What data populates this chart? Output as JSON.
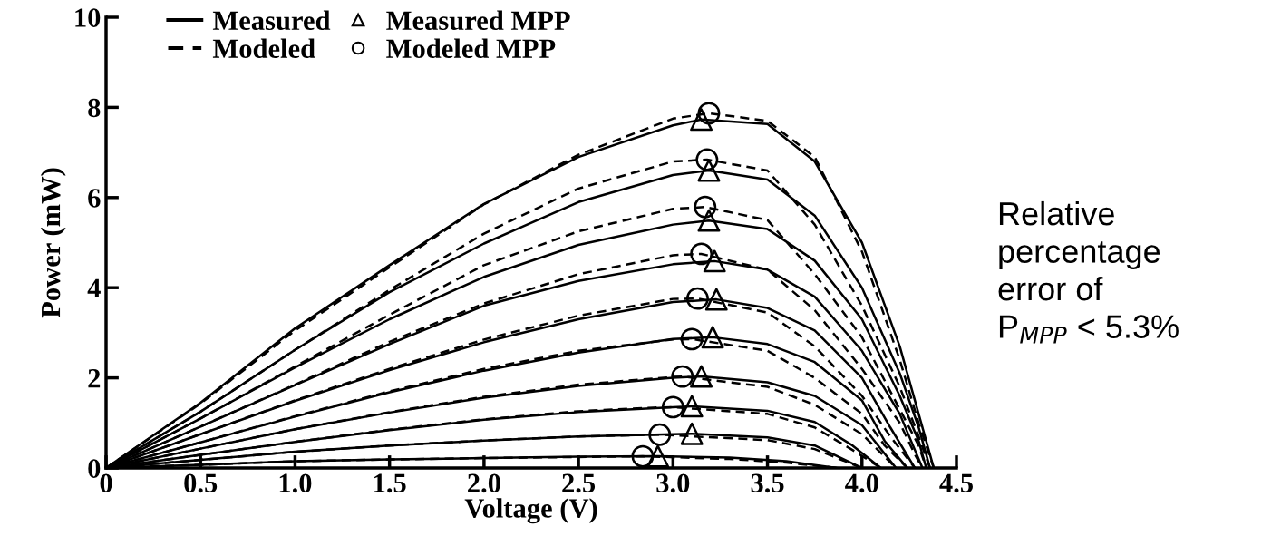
{
  "chart_data": {
    "type": "line",
    "xlabel": "Voltage (V)",
    "ylabel": "Power (mW)",
    "xlim": [
      0,
      4.5
    ],
    "ylim": [
      0,
      10
    ],
    "xticks": [
      0,
      0.5,
      {
        "value": 1,
        "label": "1.0"
      },
      1.5,
      {
        "value": 2,
        "label": "2.0"
      },
      2.5,
      {
        "value": 3,
        "label": "3.0"
      },
      3.5,
      {
        "value": 4,
        "label": "4.0"
      },
      4.5
    ],
    "yticks": [
      0,
      2,
      4,
      6,
      8,
      10
    ],
    "grid": false,
    "legend": "top left",
    "annotations": [
      "Relative\npercentage\nerror of\nP$_{MPP}$ < 5.3%"
    ],
    "series": [
      {
        "name": "Measured",
        "line_style": "solid",
        "color": "#000000",
        "x": [
          0,
          0.5,
          1,
          1.5,
          2,
          2.5,
          3,
          3.15,
          3.5,
          3.75,
          4,
          4.2,
          4.3,
          4.38
        ],
        "values": [
          0,
          1.45,
          3.1,
          4.5,
          5.86,
          6.9,
          7.6,
          7.73,
          7.63,
          6.8,
          5.0,
          2.7,
          1.2,
          0
        ]
      },
      {
        "line_style": "solid",
        "color": "#000000",
        "x": [
          0,
          0.5,
          1,
          1.5,
          2,
          2.5,
          3,
          3.19,
          3.5,
          3.75,
          4,
          4.2,
          4.3,
          4.36
        ],
        "values": [
          0,
          1.25,
          2.62,
          3.9,
          4.98,
          5.9,
          6.5,
          6.6,
          6.4,
          5.6,
          4.0,
          2.1,
          0.9,
          0
        ]
      },
      {
        "line_style": "solid",
        "color": "#000000",
        "x": [
          0,
          0.5,
          1,
          1.5,
          2,
          2.5,
          3,
          3.19,
          3.5,
          3.75,
          4,
          4.2,
          4.3,
          4.34
        ],
        "values": [
          0,
          1.1,
          2.23,
          3.3,
          4.24,
          4.95,
          5.4,
          5.49,
          5.3,
          4.6,
          3.3,
          1.6,
          0.6,
          0
        ]
      },
      {
        "line_style": "solid",
        "color": "#000000",
        "x": [
          0,
          0.5,
          1,
          1.5,
          2,
          2.5,
          3,
          3.22,
          3.5,
          3.75,
          4,
          4.2,
          4.28,
          4.32
        ],
        "values": [
          0,
          0.92,
          1.84,
          2.75,
          3.6,
          4.15,
          4.52,
          4.59,
          4.4,
          3.8,
          2.6,
          1.2,
          0.4,
          0
        ]
      },
      {
        "line_style": "solid",
        "color": "#000000",
        "x": [
          0,
          0.5,
          1,
          1.5,
          2,
          2.5,
          3,
          3.23,
          3.5,
          3.75,
          4,
          4.15,
          4.28
        ],
        "values": [
          0,
          0.75,
          1.49,
          2.17,
          2.79,
          3.3,
          3.68,
          3.74,
          3.55,
          3.05,
          2.0,
          0.9,
          0
        ]
      },
      {
        "line_style": "solid",
        "color": "#000000",
        "x": [
          0,
          0.5,
          1,
          1.5,
          2,
          2.5,
          3,
          3.21,
          3.5,
          3.75,
          4,
          4.12,
          4.24
        ],
        "values": [
          0,
          0.57,
          1.14,
          1.68,
          2.16,
          2.56,
          2.86,
          2.9,
          2.75,
          2.35,
          1.5,
          0.6,
          0
        ]
      },
      {
        "line_style": "solid",
        "color": "#000000",
        "x": [
          0,
          0.5,
          1,
          1.5,
          2,
          2.5,
          3,
          3.15,
          3.5,
          3.75,
          4,
          4.18
        ],
        "values": [
          0,
          0.43,
          0.86,
          1.23,
          1.56,
          1.82,
          2.0,
          2.03,
          1.9,
          1.6,
          0.95,
          0
        ]
      },
      {
        "line_style": "solid",
        "color": "#000000",
        "x": [
          0,
          0.5,
          1,
          1.5,
          2,
          2.5,
          3,
          3.1,
          3.5,
          3.75,
          3.95,
          4.1
        ],
        "values": [
          0,
          0.29,
          0.58,
          0.84,
          1.07,
          1.24,
          1.35,
          1.37,
          1.27,
          1.02,
          0.5,
          0
        ]
      },
      {
        "line_style": "solid",
        "color": "#000000",
        "x": [
          0,
          0.5,
          1,
          1.5,
          2,
          2.5,
          3,
          3.1,
          3.5,
          3.75,
          4.0
        ],
        "values": [
          0,
          0.18,
          0.36,
          0.5,
          0.61,
          0.7,
          0.75,
          0.76,
          0.68,
          0.5,
          0
        ]
      },
      {
        "line_style": "solid",
        "color": "#000000",
        "x": [
          0,
          0.5,
          1,
          1.5,
          2,
          2.5,
          2.92,
          3.3,
          3.6,
          3.87
        ],
        "values": [
          0,
          0.07,
          0.15,
          0.19,
          0.22,
          0.25,
          0.26,
          0.23,
          0.15,
          0
        ]
      },
      {
        "name": "Modeled",
        "line_style": "dashed",
        "color": "#000000",
        "x": [
          0,
          0.5,
          1,
          1.5,
          2,
          2.5,
          3,
          3.19,
          3.5,
          3.75,
          4,
          4.2,
          4.3,
          4.38
        ],
        "values": [
          0,
          1.43,
          3.05,
          4.45,
          5.85,
          6.95,
          7.75,
          7.87,
          7.7,
          6.9,
          4.8,
          2.4,
          1.0,
          0
        ]
      },
      {
        "line_style": "dashed",
        "color": "#000000",
        "x": [
          0,
          0.5,
          1,
          1.5,
          2,
          2.5,
          3,
          3.18,
          3.5,
          3.75,
          4,
          4.2,
          4.3,
          4.36
        ],
        "values": [
          0,
          1.25,
          2.62,
          3.95,
          5.2,
          6.2,
          6.8,
          6.84,
          6.6,
          5.4,
          3.6,
          1.8,
          0.7,
          0
        ]
      },
      {
        "line_style": "dashed",
        "color": "#000000",
        "x": [
          0,
          0.5,
          1,
          1.5,
          2,
          2.5,
          3,
          3.17,
          3.5,
          3.75,
          4,
          4.2,
          4.3,
          4.34
        ],
        "values": [
          0,
          1.1,
          2.25,
          3.4,
          4.5,
          5.25,
          5.75,
          5.79,
          5.5,
          4.3,
          2.9,
          1.3,
          0.5,
          0
        ]
      },
      {
        "line_style": "dashed",
        "color": "#000000",
        "x": [
          0,
          0.5,
          1,
          1.5,
          2,
          2.5,
          3,
          3.15,
          3.5,
          3.75,
          4,
          4.2,
          4.28,
          4.32
        ],
        "values": [
          0,
          0.92,
          1.85,
          2.8,
          3.65,
          4.3,
          4.72,
          4.75,
          4.4,
          3.5,
          2.2,
          1.0,
          0.3,
          0
        ]
      },
      {
        "line_style": "dashed",
        "color": "#000000",
        "x": [
          0,
          0.5,
          1,
          1.5,
          2,
          2.5,
          3,
          3.13,
          3.5,
          3.75,
          4,
          4.15,
          4.28
        ],
        "values": [
          0,
          0.75,
          1.5,
          2.2,
          2.85,
          3.38,
          3.75,
          3.76,
          3.45,
          2.7,
          1.6,
          0.7,
          0
        ]
      },
      {
        "line_style": "dashed",
        "color": "#000000",
        "x": [
          0,
          0.5,
          1,
          1.5,
          2,
          2.5,
          3,
          3.1,
          3.5,
          3.75,
          4,
          4.12,
          4.24
        ],
        "values": [
          0,
          0.57,
          1.15,
          1.7,
          2.2,
          2.6,
          2.85,
          2.86,
          2.6,
          2.0,
          1.2,
          0.5,
          0
        ]
      },
      {
        "line_style": "dashed",
        "color": "#000000",
        "x": [
          0,
          0.5,
          1,
          1.5,
          2,
          2.5,
          3,
          3.05,
          3.5,
          3.75,
          4,
          4.18
        ],
        "values": [
          0,
          0.43,
          0.86,
          1.24,
          1.58,
          1.85,
          2.02,
          2.03,
          1.8,
          1.4,
          0.75,
          0
        ]
      },
      {
        "line_style": "dashed",
        "color": "#000000",
        "x": [
          0,
          0.5,
          1,
          1.5,
          2,
          2.5,
          2.9,
          3.0,
          3.5,
          3.75,
          3.95,
          4.1
        ],
        "values": [
          0,
          0.29,
          0.58,
          0.85,
          1.08,
          1.26,
          1.34,
          1.35,
          1.2,
          0.9,
          0.4,
          0
        ]
      },
      {
        "line_style": "dashed",
        "color": "#000000",
        "x": [
          0,
          0.5,
          1,
          1.5,
          2,
          2.5,
          2.93,
          3.5,
          3.75,
          4.0
        ],
        "values": [
          0,
          0.18,
          0.36,
          0.5,
          0.61,
          0.7,
          0.74,
          0.62,
          0.42,
          0
        ]
      },
      {
        "line_style": "dashed",
        "color": "#000000",
        "x": [
          0,
          0.5,
          1,
          1.5,
          2,
          2.84,
          3.3,
          3.6,
          3.87
        ],
        "values": [
          0,
          0.07,
          0.15,
          0.19,
          0.22,
          0.26,
          0.2,
          0.12,
          0
        ]
      },
      {
        "name": "Measured MPP",
        "type": "scatter",
        "marker": "triangle",
        "color": "#000000",
        "x": [
          3.15,
          3.19,
          3.19,
          3.22,
          3.23,
          3.21,
          3.15,
          3.1,
          3.1,
          2.92
        ],
        "values": [
          7.73,
          6.6,
          5.49,
          4.59,
          3.74,
          2.9,
          2.03,
          1.37,
          0.76,
          0.26
        ]
      },
      {
        "name": "Modeled MPP",
        "type": "scatter",
        "marker": "circle",
        "color": "#000000",
        "x": [
          3.19,
          3.18,
          3.17,
          3.15,
          3.13,
          3.1,
          3.05,
          3.0,
          2.93,
          2.84
        ],
        "values": [
          7.87,
          6.84,
          5.79,
          4.75,
          3.76,
          2.86,
          2.03,
          1.35,
          0.74,
          0.26
        ]
      }
    ]
  }
}
